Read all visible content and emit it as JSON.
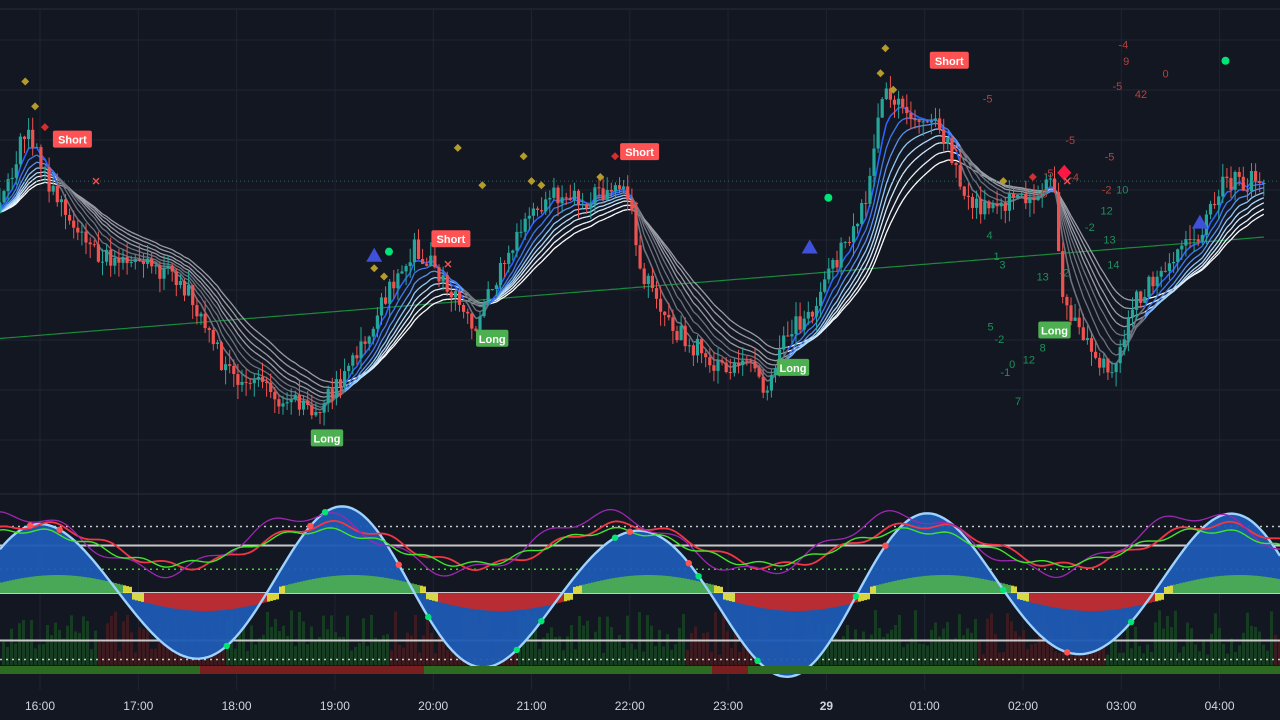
{
  "chart_data": [
    {
      "type": "candlestick",
      "title": "",
      "xlabel": "",
      "ylabel": "",
      "grid": true,
      "time_ticks": [
        {
          "label": "16:00",
          "bold": false
        },
        {
          "label": "17:00",
          "bold": false
        },
        {
          "label": "18:00",
          "bold": false
        },
        {
          "label": "19:00",
          "bold": false
        },
        {
          "label": "20:00",
          "bold": false
        },
        {
          "label": "21:00",
          "bold": false
        },
        {
          "label": "22:00",
          "bold": false
        },
        {
          "label": "23:00",
          "bold": false
        },
        {
          "label": "29",
          "bold": true
        },
        {
          "label": "01:00",
          "bold": false
        },
        {
          "label": "02:00",
          "bold": false
        },
        {
          "label": "03:00",
          "bold": false
        },
        {
          "label": "04:00",
          "bold": false
        }
      ],
      "price_path": [
        [
          15.5,
          0.55
        ],
        [
          15.85,
          0.78
        ],
        [
          16.3,
          0.55
        ],
        [
          16.6,
          0.47
        ],
        [
          17.1,
          0.47
        ],
        [
          17.5,
          0.4
        ],
        [
          17.9,
          0.2
        ],
        [
          18.2,
          0.17
        ],
        [
          18.6,
          0.12
        ],
        [
          18.8,
          0.1
        ],
        [
          19.0,
          0.17
        ],
        [
          19.4,
          0.31
        ],
        [
          19.5,
          0.38
        ],
        [
          19.8,
          0.5
        ],
        [
          20.1,
          0.43
        ],
        [
          20.4,
          0.3
        ],
        [
          20.6,
          0.4
        ],
        [
          20.9,
          0.56
        ],
        [
          21.2,
          0.63
        ],
        [
          21.5,
          0.61
        ],
        [
          21.8,
          0.64
        ],
        [
          22.0,
          0.64
        ],
        [
          22.1,
          0.45
        ],
        [
          22.4,
          0.32
        ],
        [
          22.6,
          0.27
        ],
        [
          22.9,
          0.22
        ],
        [
          23.2,
          0.22
        ],
        [
          23.4,
          0.16
        ],
        [
          23.6,
          0.3
        ],
        [
          23.9,
          0.35
        ],
        [
          24.1,
          0.47
        ],
        [
          24.4,
          0.62
        ],
        [
          24.6,
          0.9
        ],
        [
          24.8,
          0.82
        ],
        [
          25.1,
          0.82
        ],
        [
          25.3,
          0.7
        ],
        [
          25.5,
          0.6
        ],
        [
          25.8,
          0.6
        ],
        [
          26.1,
          0.63
        ],
        [
          26.3,
          0.67
        ],
        [
          26.4,
          0.38
        ],
        [
          26.6,
          0.28
        ],
        [
          26.9,
          0.2
        ],
        [
          27.1,
          0.35
        ],
        [
          27.3,
          0.42
        ],
        [
          27.5,
          0.45
        ],
        [
          27.8,
          0.54
        ],
        [
          28.05,
          0.66
        ]
      ],
      "labels": {
        "short": "Short",
        "long": "Long"
      },
      "signals": [
        {
          "type": "short",
          "t": 16.33,
          "v": 0.76
        },
        {
          "type": "short",
          "t": 20.18,
          "v": 0.52
        },
        {
          "type": "short",
          "t": 22.1,
          "v": 0.73
        },
        {
          "type": "short",
          "t": 25.25,
          "v": 0.95
        },
        {
          "type": "long",
          "t": 18.92,
          "v": 0.04
        },
        {
          "type": "long",
          "t": 20.6,
          "v": 0.28
        },
        {
          "type": "long",
          "t": 23.66,
          "v": 0.21
        },
        {
          "type": "long",
          "t": 26.32,
          "v": 0.3
        }
      ],
      "count_labels": [
        {
          "text": "-5",
          "t": 27.0,
          "v": 1.12
        },
        {
          "text": "-4",
          "t": 27.02,
          "v": 0.98
        },
        {
          "text": "9",
          "t": 27.05,
          "v": 0.94
        },
        {
          "text": "0",
          "t": 27.45,
          "v": 0.91
        },
        {
          "text": "-5",
          "t": 26.96,
          "v": 0.88
        },
        {
          "text": "42",
          "t": 27.2,
          "v": 0.86
        },
        {
          "text": "-5",
          "t": 26.48,
          "v": 0.75
        },
        {
          "text": "-5",
          "t": 26.26,
          "v": 0.67
        },
        {
          "text": "-5",
          "t": 26.2,
          "v": 0.62
        },
        {
          "text": "-4",
          "t": 26.52,
          "v": 0.66
        },
        {
          "text": "-5",
          "t": 26.88,
          "v": 0.71
        },
        {
          "text": "-2",
          "t": 26.85,
          "v": 0.63
        },
        {
          "text": "12",
          "t": 26.85,
          "v": 0.58
        },
        {
          "text": "10",
          "t": 27.01,
          "v": 0.63
        },
        {
          "text": "-2",
          "t": 26.68,
          "v": 0.54
        },
        {
          "text": "-5",
          "t": 25.64,
          "v": 0.85
        },
        {
          "text": "4",
          "t": 25.66,
          "v": 0.52
        },
        {
          "text": "1",
          "t": 25.73,
          "v": 0.47
        },
        {
          "text": "3",
          "t": 25.79,
          "v": 0.45
        },
        {
          "text": "13",
          "t": 26.88,
          "v": 0.51
        },
        {
          "text": "14",
          "t": 26.92,
          "v": 0.45
        },
        {
          "text": "-2",
          "t": 26.42,
          "v": 0.43
        },
        {
          "text": "13",
          "t": 26.2,
          "v": 0.42
        },
        {
          "text": "5",
          "t": 25.67,
          "v": 0.3
        },
        {
          "text": "-2",
          "t": 25.76,
          "v": 0.27
        },
        {
          "text": "0",
          "t": 25.89,
          "v": 0.21
        },
        {
          "text": "12",
          "t": 26.06,
          "v": 0.22
        },
        {
          "text": "-1",
          "t": 25.82,
          "v": 0.19
        },
        {
          "text": "8",
          "t": 26.2,
          "v": 0.25
        },
        {
          "text": "7",
          "t": 25.95,
          "v": 0.12
        }
      ]
    },
    {
      "type": "oscillator",
      "title": "",
      "xlabel": "",
      "ylabel": "",
      "bands": [
        70,
        50,
        25,
        0,
        -50,
        -70
      ],
      "ylim": [
        -100,
        100
      ]
    }
  ],
  "colors": {
    "background": "#131722",
    "grid": "#1f2433",
    "bull": "#26a69a",
    "bear": "#ef5350",
    "ema_fast": "#2962ff",
    "ema_light": "#90caf9",
    "ema_white": "#ffffff",
    "ema_gray": "#787b86",
    "slow_ma": "#1b8a3c",
    "short_label": "#ff5252",
    "long_label": "#4caf50",
    "wave_fill": "#1e5bb5",
    "wave_line": "#9fd3ff",
    "mf_green": "#4caf50",
    "mf_yellow": "#e8e43c",
    "mf_red": "#c62828",
    "rsi_line": "#f23645",
    "stoch_line": "#9c27b0",
    "green_line": "#41e32b",
    "band_line": "#c8c8c8",
    "dot_green": "#00e676",
    "dot_red": "#ff5252",
    "diamond": "#b49b2a",
    "diamond_red": "#d32f2f",
    "triangle": "#3f51d8",
    "axis_text": "#d1d4dc"
  }
}
